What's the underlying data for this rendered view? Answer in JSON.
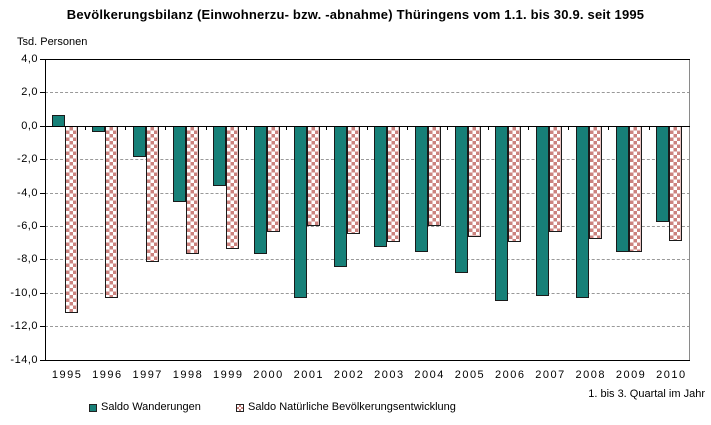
{
  "title": "Bevölkerungsbilanz (Einwohnerzu- bzw. -abnahme) Thüringens vom 1.1. bis 30.9. seit 1995",
  "y_axis_label": "Tsd. Personen",
  "footnote": "1. bis 3. Quartal im Jahr",
  "y_tick_labels": [
    "4,0",
    "2,0",
    "0,0",
    "-2,0",
    "-4,0",
    "-6,0",
    "-8,0",
    "-10,0",
    "-12,0",
    "-14,0"
  ],
  "legend": [
    {
      "label": "Saldo Wanderungen",
      "swatch": "teal-solid"
    },
    {
      "label": "Saldo Natürliche Bevölkerungsentwicklung",
      "swatch": "pink-checker"
    }
  ],
  "colors": {
    "series_wanderungen": "#178078",
    "series_natuerliche_checker": "#cc837f",
    "bar_border": "#1a1a1a",
    "gridline": "#999999",
    "axis": "#000000",
    "plot_right_frame": "#8a8a8a",
    "background": "#ffffff"
  },
  "chart_data": {
    "type": "bar",
    "title": "Bevölkerungsbilanz (Einwohnerzu- bzw. -abnahme) Thüringens vom 1.1. bis 30.9. seit 1995",
    "ylabel": "Tsd. Personen",
    "xlabel": "1. bis 3. Quartal im Jahr",
    "ylim": [
      -14,
      4
    ],
    "ytick_step": 2,
    "grid": true,
    "legend_position": "bottom",
    "categories": [
      "1995",
      "1996",
      "1997",
      "1998",
      "1999",
      "2000",
      "2001",
      "2002",
      "2003",
      "2004",
      "2005",
      "2006",
      "2007",
      "2008",
      "2009",
      "2010"
    ],
    "series": [
      {
        "name": "Saldo Wanderungen",
        "style": "solid",
        "values": [
          0.7,
          -0.3,
          -1.8,
          -4.5,
          -3.5,
          -7.6,
          -10.2,
          -8.4,
          -7.2,
          -7.5,
          -8.7,
          -10.4,
          -10.1,
          -10.2,
          -7.5,
          -5.7
        ]
      },
      {
        "name": "Saldo Natürliche Bevölkerungsentwicklung",
        "style": "checker",
        "values": [
          -11.1,
          -10.2,
          -8.1,
          -7.6,
          -7.3,
          -6.3,
          -5.9,
          -6.4,
          -6.9,
          -5.9,
          -6.6,
          -6.9,
          -6.3,
          -6.7,
          -7.5,
          -6.8
        ]
      }
    ]
  }
}
